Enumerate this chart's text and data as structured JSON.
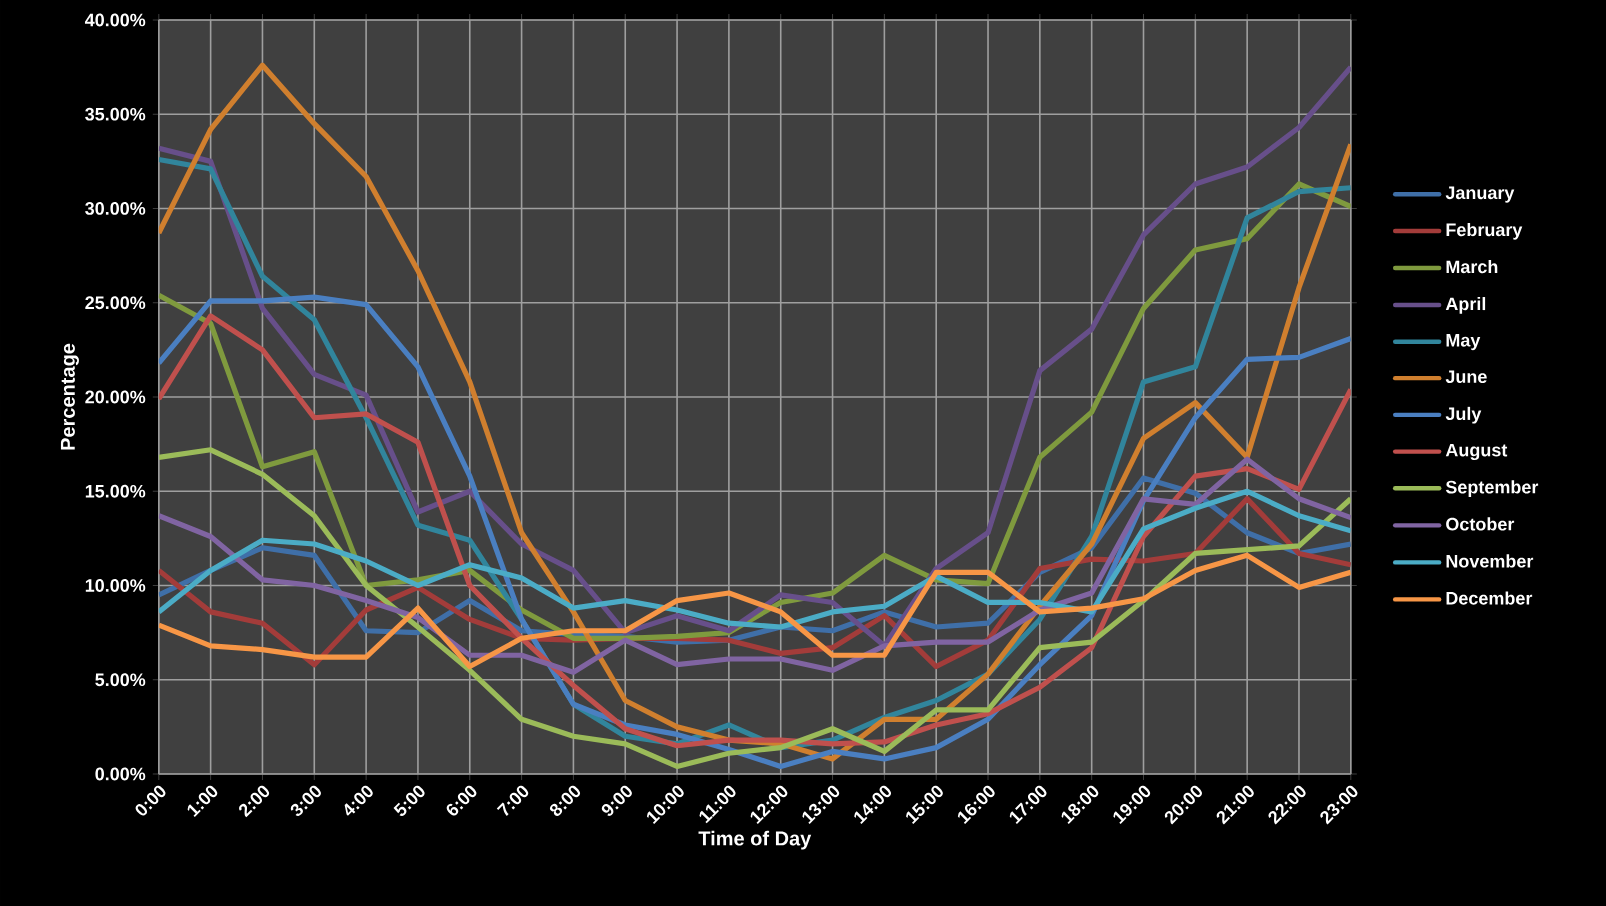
{
  "chart_data": {
    "type": "line",
    "xlabel": "Time of Day",
    "ylabel": "Percentage",
    "categories": [
      "0:00",
      "1:00",
      "2:00",
      "3:00",
      "4:00",
      "5:00",
      "6:00",
      "7:00",
      "8:00",
      "9:00",
      "10:00",
      "11:00",
      "12:00",
      "13:00",
      "14:00",
      "15:00",
      "16:00",
      "17:00",
      "18:00",
      "19:00",
      "20:00",
      "21:00",
      "22:00",
      "23:00"
    ],
    "ylim": [
      0,
      40
    ],
    "yticks": [
      {
        "value": 0,
        "label": "0.00%"
      },
      {
        "value": 5,
        "label": "5.00%"
      },
      {
        "value": 10,
        "label": "10.00%"
      },
      {
        "value": 15,
        "label": "15.00%"
      },
      {
        "value": 20,
        "label": "20.00%"
      },
      {
        "value": 25,
        "label": "25.00%"
      },
      {
        "value": 30,
        "label": "30.00%"
      },
      {
        "value": 35,
        "label": "35.00%"
      },
      {
        "value": 40,
        "label": "40.00%"
      }
    ],
    "grid": true,
    "legend": "right",
    "marker": "none",
    "line_style": "solid",
    "series": [
      {
        "name": "January",
        "color": "#3f6fa8",
        "values": [
          9.5,
          10.8,
          12.0,
          11.6,
          7.6,
          7.5,
          9.2,
          7.6,
          7.4,
          7.3,
          7.0,
          7.1,
          7.8,
          7.6,
          8.6,
          7.8,
          8.0,
          10.7,
          12.0,
          15.7,
          14.9,
          12.8,
          11.7,
          12.2
        ]
      },
      {
        "name": "February",
        "color": "#a33c3a",
        "values": [
          10.8,
          8.6,
          8.0,
          5.8,
          8.7,
          9.9,
          8.2,
          7.2,
          7.1,
          7.2,
          7.2,
          7.1,
          6.4,
          6.7,
          8.4,
          5.7,
          7.1,
          10.9,
          11.4,
          11.3,
          11.7,
          14.6,
          11.7,
          11.1
        ]
      },
      {
        "name": "March",
        "color": "#7f9a3e",
        "values": [
          25.4,
          23.9,
          16.3,
          17.1,
          10.0,
          10.3,
          10.8,
          8.7,
          7.2,
          7.2,
          7.3,
          7.5,
          9.1,
          9.6,
          11.6,
          10.3,
          10.1,
          16.8,
          19.2,
          24.7,
          27.8,
          28.4,
          31.3,
          30.1
        ]
      },
      {
        "name": "April",
        "color": "#674f8a",
        "values": [
          33.2,
          32.5,
          24.7,
          21.2,
          20.1,
          13.9,
          15.0,
          12.2,
          10.8,
          7.5,
          8.4,
          7.6,
          9.5,
          9.1,
          6.8,
          10.9,
          12.8,
          21.4,
          23.6,
          28.6,
          31.3,
          32.2,
          34.3,
          37.5
        ]
      },
      {
        "name": "May",
        "color": "#31859c",
        "values": [
          32.6,
          32.1,
          26.4,
          24.1,
          18.9,
          13.2,
          12.4,
          8.2,
          3.7,
          2.0,
          1.6,
          2.6,
          1.4,
          1.8,
          3.0,
          3.9,
          5.3,
          8.2,
          12.6,
          20.8,
          21.6,
          29.5,
          30.9,
          31.1
        ]
      },
      {
        "name": "June",
        "color": "#d07f2e",
        "values": [
          28.7,
          34.2,
          37.6,
          34.5,
          31.7,
          26.7,
          20.8,
          12.8,
          8.6,
          3.9,
          2.5,
          1.8,
          1.6,
          0.8,
          2.9,
          2.9,
          5.3,
          8.9,
          12.2,
          17.8,
          19.7,
          16.8,
          25.8,
          33.4
        ]
      },
      {
        "name": "July",
        "color": "#4a7fc1",
        "values": [
          21.8,
          25.1,
          25.1,
          25.3,
          24.9,
          21.6,
          15.8,
          8.2,
          3.7,
          2.6,
          2.1,
          1.3,
          0.4,
          1.2,
          0.8,
          1.4,
          2.9,
          5.8,
          8.4,
          14.5,
          18.9,
          22.0,
          22.1,
          23.1
        ]
      },
      {
        "name": "August",
        "color": "#c0504d",
        "values": [
          19.9,
          24.3,
          22.5,
          18.9,
          19.1,
          17.6,
          10.0,
          7.2,
          4.7,
          2.4,
          1.5,
          1.8,
          1.8,
          1.6,
          1.7,
          2.6,
          3.2,
          4.6,
          6.7,
          12.6,
          15.8,
          16.2,
          15.1,
          20.4
        ]
      },
      {
        "name": "September",
        "color": "#9bbb59",
        "values": [
          16.8,
          17.2,
          15.9,
          13.7,
          10.0,
          7.8,
          5.5,
          2.9,
          2.0,
          1.6,
          0.4,
          1.1,
          1.4,
          2.4,
          1.2,
          3.4,
          3.4,
          6.7,
          7.0,
          9.2,
          11.7,
          11.9,
          12.1,
          14.6
        ]
      },
      {
        "name": "October",
        "color": "#8064a2",
        "values": [
          13.7,
          12.6,
          10.3,
          10.0,
          9.2,
          8.3,
          6.3,
          6.3,
          5.4,
          7.1,
          5.8,
          6.1,
          6.1,
          5.5,
          6.8,
          7.0,
          7.0,
          8.7,
          9.6,
          14.6,
          14.3,
          16.7,
          14.6,
          13.6
        ]
      },
      {
        "name": "November",
        "color": "#4bacc6",
        "values": [
          8.6,
          10.8,
          12.4,
          12.2,
          11.3,
          10.0,
          11.1,
          10.4,
          8.8,
          9.2,
          8.7,
          8.0,
          7.8,
          8.6,
          8.9,
          10.5,
          9.1,
          9.1,
          8.6,
          13.0,
          14.1,
          15.0,
          13.7,
          12.9
        ]
      },
      {
        "name": "December",
        "color": "#f79646",
        "values": [
          7.9,
          6.8,
          6.6,
          6.2,
          6.2,
          8.8,
          5.7,
          7.2,
          7.6,
          7.6,
          9.2,
          9.6,
          8.6,
          6.3,
          6.3,
          10.7,
          10.7,
          8.6,
          8.8,
          9.3,
          10.8,
          11.6,
          9.9,
          10.7
        ]
      }
    ]
  }
}
